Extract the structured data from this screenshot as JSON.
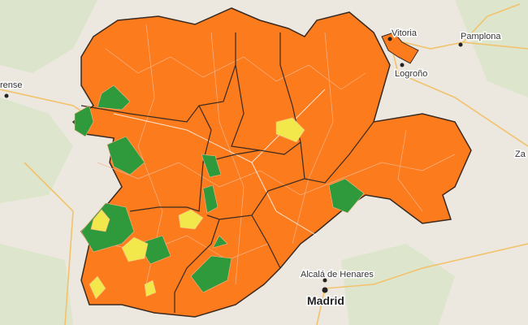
{
  "labels": {
    "vitoria": "Vitoria",
    "pamplona": "Pamplona",
    "logrono": "Logroño",
    "ourense": "rense",
    "zaragoza": "Za",
    "alcala": "Alcalá de Henares",
    "madrid": "Madrid"
  }
}
